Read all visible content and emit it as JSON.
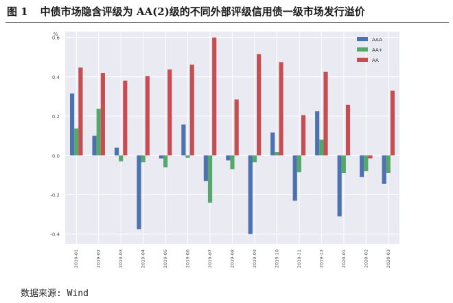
{
  "figure": {
    "number": "图 1",
    "title": "中债市场隐含评级为 AA(2)级的不同外部评级信用债一级市场发行溢价",
    "source": "数据来源: Wind"
  },
  "chart_data": {
    "type": "bar",
    "unit_label": "%",
    "categories": [
      "2019-01",
      "2019-02",
      "2019-03",
      "2019-04",
      "2019-05",
      "2019-06",
      "2019-07",
      "2019-08",
      "2019-09",
      "2019-10",
      "2019-11",
      "2019-12",
      "2020-01",
      "2020-02",
      "2020-03"
    ],
    "series": [
      {
        "name": "AAA",
        "color": "#4c72b0",
        "values": [
          0.315,
          0.1,
          0.04,
          -0.375,
          -0.015,
          0.157,
          -0.13,
          -0.025,
          -0.4,
          0.117,
          -0.23,
          0.225,
          -0.31,
          -0.11,
          -0.145
        ]
      },
      {
        "name": "AA+",
        "color": "#55a868",
        "values": [
          0.137,
          0.237,
          -0.03,
          -0.035,
          -0.06,
          -0.012,
          -0.24,
          -0.07,
          -0.035,
          0.018,
          -0.085,
          0.08,
          -0.09,
          -0.08,
          -0.09
        ]
      },
      {
        "name": "AA",
        "color": "#c44e52",
        "values": [
          0.447,
          0.42,
          0.38,
          0.403,
          0.437,
          0.462,
          0.6,
          0.285,
          0.515,
          0.475,
          0.205,
          0.425,
          0.257,
          -0.015,
          0.33
        ]
      }
    ],
    "ylim": [
      -0.45,
      0.63
    ],
    "yticks": [
      -0.4,
      -0.2,
      0.0,
      0.2,
      0.4,
      0.6
    ],
    "ytick_labels": [
      "-0.4",
      "-0.2",
      "0.0",
      "0.2",
      "0.4",
      "0.6"
    ],
    "grid": true,
    "legend_position": "top-right"
  }
}
